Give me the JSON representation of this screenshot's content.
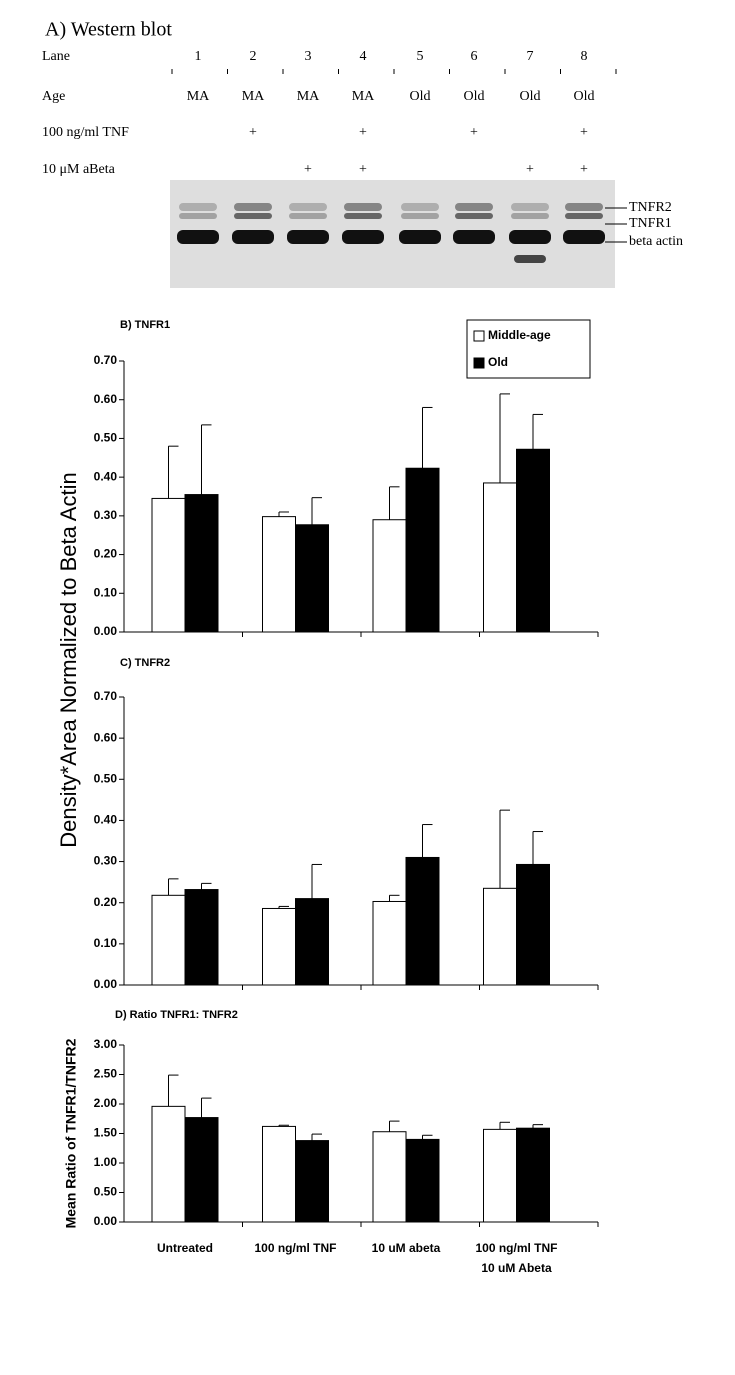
{
  "western_blot": {
    "title": "A) Western blot",
    "rows": [
      {
        "label": "Lane",
        "cells": [
          "1",
          "2",
          "3",
          "4",
          "5",
          "6",
          "7",
          "8"
        ]
      },
      {
        "label": "Age",
        "cells": [
          "MA",
          "MA",
          "MA",
          "MA",
          "Old",
          "Old",
          "Old",
          "Old"
        ]
      },
      {
        "label": "100 ng/ml TNF",
        "cells": [
          null,
          "+",
          null,
          "+",
          null,
          "+",
          null,
          "+"
        ]
      },
      {
        "label": "10 μM aBeta",
        "cells": [
          null,
          null,
          "+",
          "+",
          null,
          null,
          "+",
          "+"
        ]
      }
    ],
    "band_labels": [
      "TNFR2",
      "TNFR1",
      "beta actin"
    ]
  },
  "shared_y_label": "Density*Area Normalized to Beta Actin",
  "chart_data": [
    {
      "type": "bar",
      "title": "B) TNFR1",
      "categories": [
        null,
        null,
        null,
        null
      ],
      "series": [
        {
          "name": "Middle-age",
          "color": "#ffffff",
          "values": [
            0.345,
            0.298,
            0.29,
            0.385
          ],
          "errors": [
            0.135,
            0.012,
            0.085,
            0.23
          ]
        },
        {
          "name": "Old",
          "color": "#000000",
          "values": [
            0.355,
            0.277,
            0.423,
            0.472
          ],
          "errors": [
            0.18,
            0.07,
            0.157,
            0.09
          ]
        }
      ],
      "ylim": [
        0,
        0.7
      ],
      "yticks": [
        {
          "value": 0,
          "label": "0.00"
        },
        {
          "value": 0.1,
          "label": "0.10"
        },
        {
          "value": 0.2,
          "label": "0.20"
        },
        {
          "value": 0.3,
          "label": "0.30"
        },
        {
          "value": 0.4,
          "label": "0.40"
        },
        {
          "value": 0.5,
          "label": "0.50"
        },
        {
          "value": 0.6,
          "label": "0.60"
        },
        {
          "value": 0.7,
          "label": "0.70"
        }
      ],
      "legend": "upper right"
    },
    {
      "type": "bar",
      "title": "C) TNFR2",
      "categories": [
        null,
        null,
        null,
        null
      ],
      "series": [
        {
          "color": "#ffffff",
          "values": [
            0.218,
            0.186,
            0.203,
            0.235
          ],
          "errors": [
            0.04,
            0.005,
            0.015,
            0.19
          ]
        },
        {
          "color": "#000000",
          "values": [
            0.232,
            0.21,
            0.31,
            0.293
          ],
          "errors": [
            0.015,
            0.083,
            0.08,
            0.08
          ]
        }
      ],
      "ylim": [
        0,
        0.7
      ],
      "yticks": [
        {
          "value": 0,
          "label": "0.00"
        },
        {
          "value": 0.1,
          "label": "0.10"
        },
        {
          "value": 0.2,
          "label": "0.20"
        },
        {
          "value": 0.3,
          "label": "0.30"
        },
        {
          "value": 0.4,
          "label": "0.40"
        },
        {
          "value": 0.5,
          "label": "0.50"
        },
        {
          "value": 0.6,
          "label": "0.60"
        },
        {
          "value": 0.7,
          "label": "0.70"
        }
      ]
    },
    {
      "type": "bar",
      "title": "D) Ratio TNFR1: TNFR2",
      "y_label": "Mean Ratio of TNFR1/TNFR2",
      "categories": [
        "Untreated",
        "100 ng/ml TNF",
        "10 uM abeta",
        "100 ng/ml TNF\n10 uM Abeta"
      ],
      "series": [
        {
          "color": "#ffffff",
          "values": [
            1.96,
            1.62,
            1.53,
            1.57
          ],
          "errors": [
            0.53,
            0.02,
            0.18,
            0.12
          ]
        },
        {
          "color": "#000000",
          "values": [
            1.77,
            1.38,
            1.4,
            1.59
          ],
          "errors": [
            0.33,
            0.11,
            0.07,
            0.06
          ]
        }
      ],
      "ylim": [
        0,
        3
      ],
      "yticks": [
        {
          "value": 0,
          "label": "0.00"
        },
        {
          "value": 0.5,
          "label": "0.50"
        },
        {
          "value": 1,
          "label": "1.00"
        },
        {
          "value": 1.5,
          "label": "1.50"
        },
        {
          "value": 2,
          "label": "2.00"
        },
        {
          "value": 2.5,
          "label": "2.50"
        },
        {
          "value": 3,
          "label": "3.00"
        }
      ]
    }
  ]
}
